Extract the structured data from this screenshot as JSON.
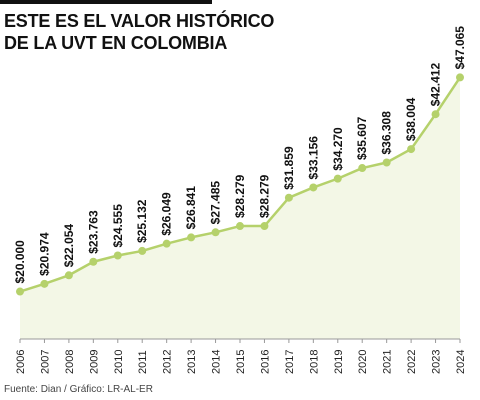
{
  "header": {
    "title_line1": "ESTE ES EL VALOR HISTÓRICO",
    "title_line2": "DE LA UVT EN COLOMBIA"
  },
  "footer": {
    "source": "Fuente: Dian / Gráfico: LR-AL-ER"
  },
  "colors": {
    "line": "#b5d16b",
    "area": "#f3f7e6",
    "text": "#111111"
  },
  "chart_data": {
    "type": "area",
    "title": "ESTE ES EL VALOR HISTÓRICO DE LA UVT EN COLOMBIA",
    "xlabel": "",
    "ylabel": "",
    "grid": false,
    "legend": "none",
    "x": [
      "2006",
      "2007",
      "2008",
      "2009",
      "2010",
      "2011",
      "2012",
      "2013",
      "2014",
      "2015",
      "2016",
      "2017",
      "2018",
      "2019",
      "2020",
      "2021",
      "2022",
      "2023",
      "2024"
    ],
    "values": [
      20000,
      20974,
      22054,
      23763,
      24555,
      25132,
      26049,
      26841,
      27485,
      28279,
      28279,
      31859,
      33156,
      34270,
      35607,
      36308,
      38004,
      42412,
      47065
    ],
    "value_labels": [
      "$20.000",
      "$20.974",
      "$22.054",
      "$23.763",
      "$24.555",
      "$25.132",
      "$26.049",
      "$26.841",
      "$27.485",
      "$28.279",
      "$28.279",
      "$31.859",
      "$33.156",
      "$34.270",
      "$35.607",
      "$36.308",
      "$38.004",
      "$42.412",
      "$47.065"
    ],
    "ylim": [
      14000,
      48000
    ]
  }
}
